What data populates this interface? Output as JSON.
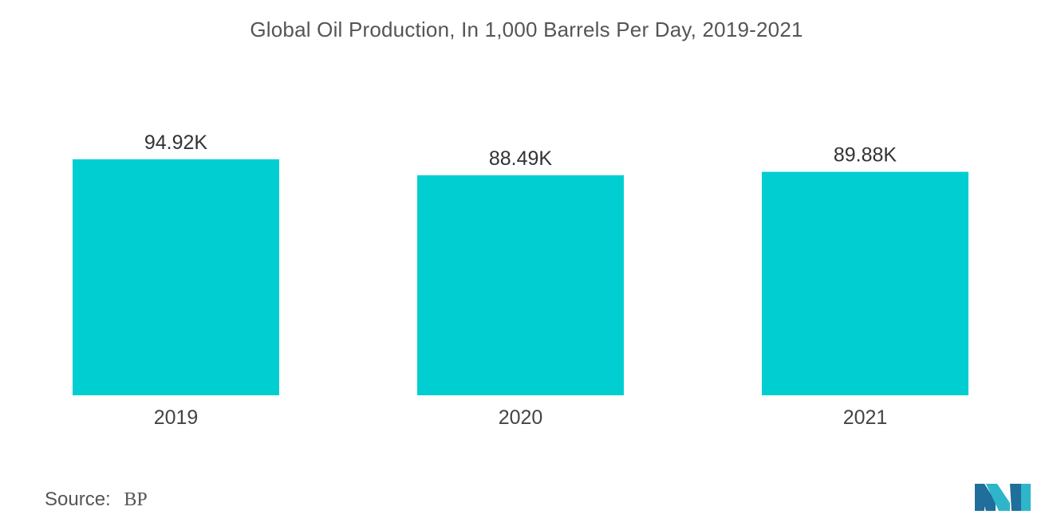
{
  "chart_data": {
    "type": "bar",
    "title": "Global Oil Production, In 1,000 Barrels Per Day, 2019-2021",
    "categories": [
      "2019",
      "2020",
      "2021"
    ],
    "values": [
      94.92,
      88.49,
      89.88
    ],
    "value_labels": [
      "94.92K",
      "88.49K",
      "89.88K"
    ],
    "xlabel": "",
    "ylabel": "",
    "ylim": [
      0,
      100
    ],
    "grid": false,
    "legend": "none",
    "bar_color": "#00CED1"
  },
  "source": {
    "label": "Source:",
    "value": "BP"
  },
  "logo": {
    "icon": "mordor-intelligence-logo",
    "colors": [
      "#1F6E9C",
      "#2FB5C9"
    ]
  }
}
